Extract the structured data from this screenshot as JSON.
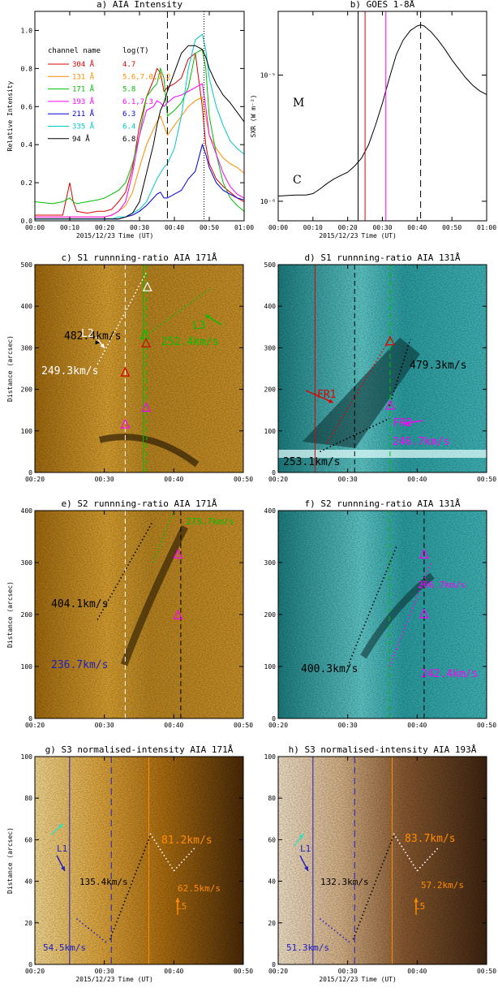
{
  "figure": {
    "date_label": "2015/12/23",
    "time_label": "Time (UT)"
  },
  "chart_data": [
    {
      "id": "a",
      "type": "line",
      "title": "a) AIA Intensity",
      "ylabel": "Relative Intensity",
      "xlim": [
        "00:00",
        "01:00"
      ],
      "ylim": [
        0,
        1.1
      ],
      "xticks": [
        "00:00",
        "00:10",
        "00:20",
        "00:30",
        "00:40",
        "00:50",
        "01:00"
      ],
      "yticks": [
        "0.0",
        "0.2",
        "0.4",
        "0.6",
        "0.8",
        "1.0"
      ],
      "legend_header": [
        "channel name",
        "log(T)"
      ],
      "vlines": [
        {
          "x": 38,
          "style": "dashed"
        },
        {
          "x": 48.5,
          "style": "dotted"
        }
      ],
      "x_minutes": [
        0,
        5,
        8,
        10,
        11,
        12,
        15,
        18,
        20,
        22,
        24,
        26,
        28,
        30,
        32,
        34,
        35,
        36,
        37,
        38,
        40,
        42,
        44,
        46,
        48,
        49,
        50,
        52,
        54,
        56,
        58,
        60
      ],
      "series": [
        {
          "name": "304 Å",
          "logT": "4.7",
          "color": "#e00000",
          "values": [
            0.03,
            0.03,
            0.03,
            0.2,
            0.1,
            0.05,
            0.04,
            0.05,
            0.05,
            0.06,
            0.1,
            0.15,
            0.28,
            0.5,
            0.65,
            0.74,
            0.8,
            0.78,
            0.68,
            0.7,
            0.72,
            0.75,
            0.85,
            0.88,
            0.6,
            0.4,
            0.3,
            0.22,
            0.18,
            0.15,
            0.12,
            0.1
          ]
        },
        {
          "name": "131 Å",
          "logT": "5.6,7.0,7.2",
          "color": "#ff8c00",
          "values": [
            0.02,
            0.02,
            0.02,
            0.02,
            0.02,
            0.02,
            0.02,
            0.02,
            0.02,
            0.03,
            0.05,
            0.08,
            0.15,
            0.28,
            0.4,
            0.48,
            0.52,
            0.55,
            0.5,
            0.45,
            0.5,
            0.55,
            0.6,
            0.63,
            0.65,
            0.55,
            0.45,
            0.38,
            0.33,
            0.3,
            0.28,
            0.25
          ]
        },
        {
          "name": "171 Å",
          "logT": "5.8",
          "color": "#00c000",
          "values": [
            0.1,
            0.09,
            0.1,
            0.12,
            0.1,
            0.09,
            0.1,
            0.11,
            0.12,
            0.14,
            0.16,
            0.2,
            0.3,
            0.45,
            0.65,
            0.7,
            0.72,
            0.8,
            0.75,
            0.55,
            0.58,
            0.62,
            0.7,
            0.88,
            0.9,
            0.8,
            0.55,
            0.35,
            0.2,
            0.12,
            0.08,
            0.05
          ]
        },
        {
          "name": "193 Å",
          "logT": "6.1,7.3",
          "color": "#ff00ff",
          "values": [
            0.02,
            0.02,
            0.02,
            0.02,
            0.02,
            0.02,
            0.02,
            0.02,
            0.02,
            0.03,
            0.05,
            0.1,
            0.25,
            0.45,
            0.58,
            0.6,
            0.63,
            0.62,
            0.6,
            0.62,
            0.65,
            0.66,
            0.68,
            0.7,
            0.72,
            0.6,
            0.45,
            0.35,
            0.25,
            0.18,
            0.14,
            0.12
          ]
        },
        {
          "name": "211 Å",
          "logT": "6.3",
          "color": "#0000e0",
          "values": [
            0.01,
            0.01,
            0.01,
            0.01,
            0.01,
            0.01,
            0.01,
            0.01,
            0.01,
            0.01,
            0.01,
            0.02,
            0.03,
            0.05,
            0.08,
            0.12,
            0.14,
            0.15,
            0.12,
            0.12,
            0.14,
            0.16,
            0.22,
            0.26,
            0.4,
            0.35,
            0.28,
            0.2,
            0.16,
            0.14,
            0.12,
            0.11
          ]
        },
        {
          "name": "335 Å",
          "logT": "6.4",
          "color": "#00c8c8",
          "values": [
            0.01,
            0.01,
            0.01,
            0.01,
            0.01,
            0.01,
            0.01,
            0.01,
            0.01,
            0.01,
            0.02,
            0.02,
            0.04,
            0.06,
            0.1,
            0.18,
            0.22,
            0.25,
            0.28,
            0.3,
            0.38,
            0.55,
            0.8,
            0.95,
            0.98,
            0.9,
            0.75,
            0.6,
            0.5,
            0.42,
            0.38,
            0.35
          ]
        },
        {
          "name": "94 Å",
          "logT": "6.8",
          "color": "#000000",
          "values": [
            0.01,
            0.01,
            0.01,
            0.01,
            0.01,
            0.01,
            0.01,
            0.01,
            0.01,
            0.01,
            0.01,
            0.02,
            0.04,
            0.1,
            0.25,
            0.4,
            0.5,
            0.58,
            0.62,
            0.68,
            0.78,
            0.88,
            0.92,
            0.92,
            0.9,
            0.86,
            0.8,
            0.72,
            0.66,
            0.62,
            0.57,
            0.52
          ]
        }
      ]
    },
    {
      "id": "b",
      "type": "line",
      "title": "b) GOES 1-8Å",
      "ylabel": "SXR (W m⁻²)",
      "xlim": [
        "00:00",
        "01:00"
      ],
      "yscale": "log",
      "xticks": [
        "00:00",
        "00:10",
        "00:20",
        "00:30",
        "00:40",
        "00:50",
        "01:00"
      ],
      "yticks": [
        "10⁻⁶",
        "10⁻⁵"
      ],
      "class_labels": [
        "M",
        "C"
      ],
      "vlines": [
        {
          "x": 23,
          "color": "#000000"
        },
        {
          "x": 25,
          "color": "#e00000"
        },
        {
          "x": 31,
          "color": "#ff00ff"
        },
        {
          "x": 41,
          "color": "#000000",
          "style": "dashed"
        }
      ],
      "x_minutes": [
        0,
        5,
        8,
        10,
        12,
        14,
        16,
        18,
        20,
        22,
        24,
        26,
        28,
        30,
        32,
        34,
        36,
        38,
        40,
        41,
        42,
        44,
        46,
        48,
        50,
        52,
        54,
        56,
        58,
        60
      ],
      "values": [
        1.1e-06,
        1.12e-06,
        1.12e-06,
        1.15e-06,
        1.25e-06,
        1.38e-06,
        1.5e-06,
        1.6e-06,
        1.7e-06,
        1.9e-06,
        2.2e-06,
        2.8e-06,
        4e-06,
        6e-06,
        9.5e-06,
        1.45e-05,
        1.9e-05,
        2.25e-05,
        2.45e-05,
        2.5e-05,
        2.45e-05,
        2.2e-05,
        1.9e-05,
        1.6e-05,
        1.32e-05,
        1.12e-05,
        9.5e-06,
        8.3e-06,
        7.5e-06,
        7e-06
      ]
    },
    {
      "id": "c",
      "type": "heatmap",
      "title": "c) S1 runnning-ratio AIA 171Å",
      "ylabel": "Distance (arcsec)",
      "xlim": [
        "00:20",
        "00:50"
      ],
      "ylim": [
        0,
        500
      ],
      "xticks": [
        "00:20",
        "00:30",
        "00:40",
        "00:50"
      ],
      "yticks": [
        "0",
        "100",
        "200",
        "300",
        "400",
        "500"
      ],
      "labels": {
        "v1": "482.4km/s",
        "v2": "249.3km/s",
        "v3": "252.4km/s",
        "l2": "L2",
        "l3": "L3"
      }
    },
    {
      "id": "d",
      "type": "heatmap",
      "title": "d) S1 runnning-ratio AIA 131Å",
      "xlim": [
        "00:20",
        "00:50"
      ],
      "ylim": [
        0,
        500
      ],
      "xticks": [
        "00:20",
        "00:30",
        "00:40",
        "00:50"
      ],
      "yticks": [
        "0",
        "100",
        "200",
        "300",
        "400",
        "500"
      ],
      "labels": {
        "v1": "479.3km/s",
        "v2": "246.7km/s",
        "v3": "253.1km/s",
        "fr1": "FR1",
        "fr2": "FR2"
      }
    },
    {
      "id": "e",
      "type": "heatmap",
      "title": "e) S2 runnning-ratio AIA 171Å",
      "ylabel": "Distance (arcsec)",
      "xlim": [
        "00:20",
        "00:50"
      ],
      "ylim": [
        0,
        400
      ],
      "xticks": [
        "00:20",
        "00:30",
        "00:40",
        "00:50"
      ],
      "yticks": [
        "0",
        "100",
        "200",
        "300",
        "400"
      ],
      "labels": {
        "v1": "404.1km/s",
        "v2": "236.7km/s",
        "v3": "273.7km/s"
      }
    },
    {
      "id": "f",
      "type": "heatmap",
      "title": "f) S2 runnning-ratio AIA 131Å",
      "xlim": [
        "00:20",
        "00:50"
      ],
      "ylim": [
        0,
        400
      ],
      "xticks": [
        "00:20",
        "00:30",
        "00:40",
        "00:50"
      ],
      "yticks": [
        "0",
        "100",
        "200",
        "300",
        "400"
      ],
      "labels": {
        "v1": "400.3km/s",
        "v2": "242.4km/s",
        "v3": "266.7km/s"
      }
    },
    {
      "id": "g",
      "type": "heatmap",
      "title": "g) S3 normalised-intensity AIA 171Å",
      "ylabel": "Distance (arcsec)",
      "xlim": [
        "00:20",
        "00:50"
      ],
      "ylim": [
        0,
        100
      ],
      "xticks": [
        "00:20",
        "00:30",
        "00:40",
        "00:50"
      ],
      "yticks": [
        "0",
        "20",
        "40",
        "60",
        "80",
        "100"
      ],
      "labels": {
        "v1": "81.2km/s",
        "v2": "135.4km/s",
        "v3": "62.5km/s",
        "v4": "54.5km/s",
        "l1": "L1",
        "l5": "L5"
      }
    },
    {
      "id": "h",
      "type": "heatmap",
      "title": "h) S3 normalised-intensity AIA 193Å",
      "xlim": [
        "00:20",
        "00:50"
      ],
      "ylim": [
        0,
        100
      ],
      "xticks": [
        "00:20",
        "00:30",
        "00:40",
        "00:50"
      ],
      "yticks": [
        "0",
        "20",
        "40",
        "60",
        "80",
        "100"
      ],
      "labels": {
        "v1": "83.7km/s",
        "v2": "132.3km/s",
        "v3": "57.2km/s",
        "v4": "51.3km/s",
        "l1": "L1",
        "l5": "L5"
      }
    }
  ]
}
